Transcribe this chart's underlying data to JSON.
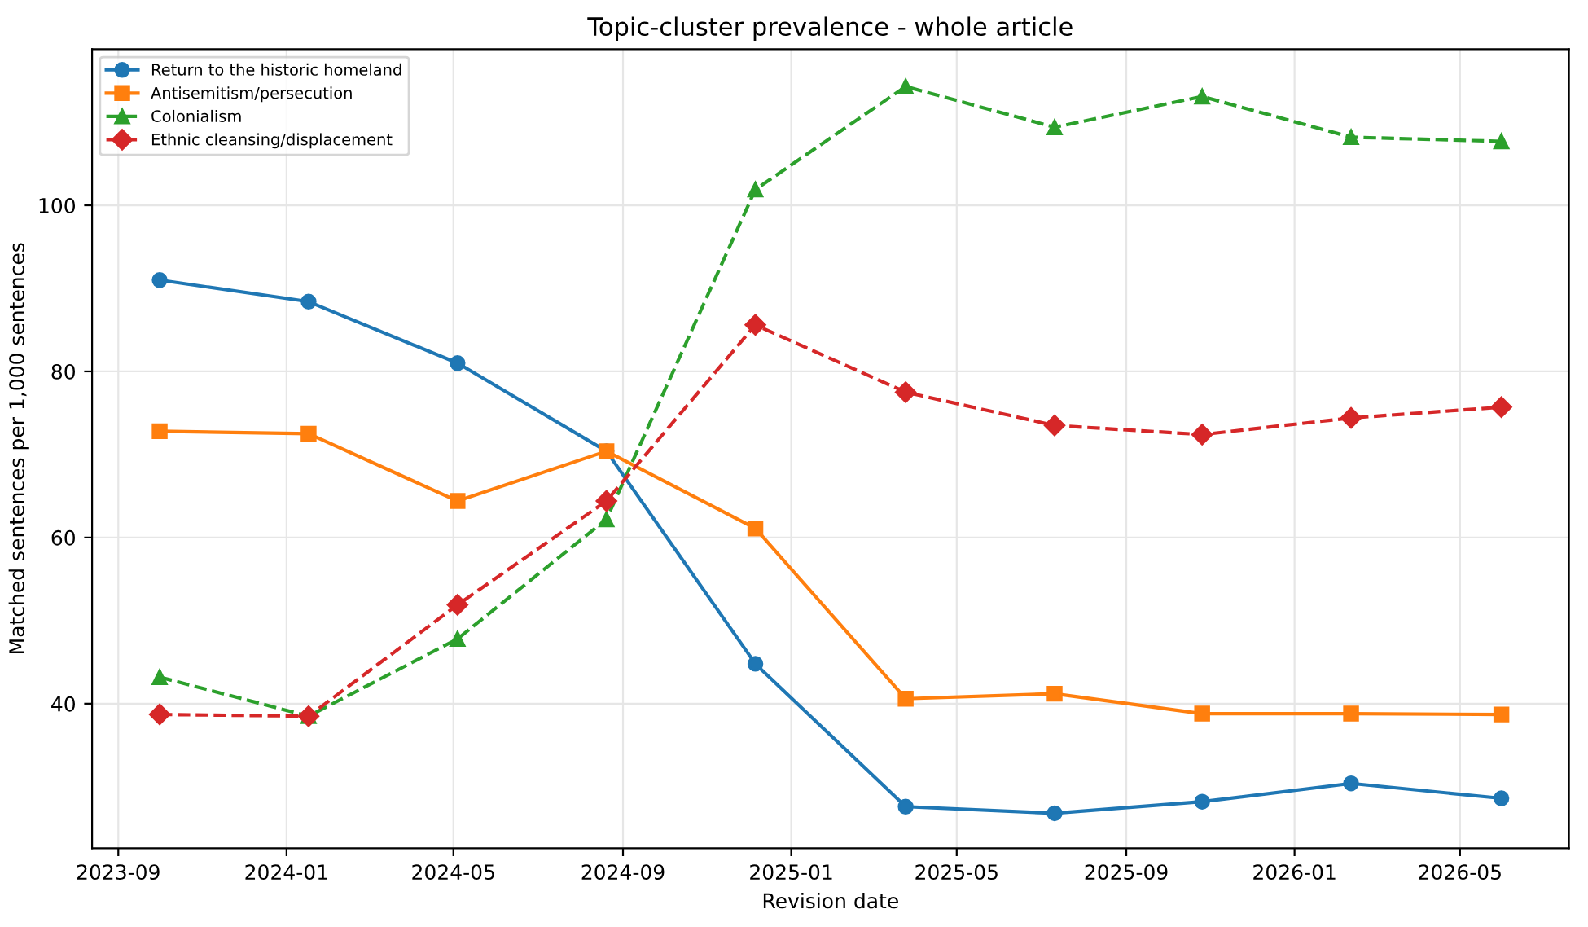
{
  "chart_data": {
    "type": "line",
    "title": "Topic-cluster prevalence - whole article",
    "xlabel": "Revision date",
    "ylabel": "Matched sentences per 1,000 sentences",
    "x": [
      "2023-10-01",
      "2024-01-17",
      "2024-05-04",
      "2024-08-20",
      "2024-12-06",
      "2025-03-25",
      "2025-07-11",
      "2025-10-26",
      "2026-02-11",
      "2026-05-31"
    ],
    "series": [
      {
        "name": "Return to the historic homeland",
        "color": "#1f77b4",
        "marker": "circle",
        "line_style": "solid",
        "values": [
          91.0,
          88.4,
          81.0,
          70.4,
          44.8,
          27.6,
          26.8,
          28.2,
          30.4,
          28.6
        ]
      },
      {
        "name": "Antisemitism/persecution",
        "color": "#ff7f0e",
        "marker": "square",
        "line_style": "solid",
        "values": [
          72.8,
          72.5,
          64.4,
          70.4,
          61.1,
          40.6,
          41.2,
          38.8,
          38.8,
          38.7
        ]
      },
      {
        "name": "Colonialism",
        "color": "#2ca02c",
        "marker": "triangle",
        "line_style": "dashed",
        "values": [
          43.2,
          38.5,
          47.8,
          62.2,
          101.9,
          114.3,
          109.4,
          113.1,
          108.2,
          107.7
        ]
      },
      {
        "name": "Ethnic cleansing/displacement",
        "color": "#d62728",
        "marker": "diamond",
        "line_style": "dashed",
        "values": [
          38.7,
          38.5,
          51.9,
          64.4,
          85.6,
          77.5,
          73.5,
          72.4,
          74.4,
          75.7
        ]
      }
    ],
    "xlim": [
      "2023-08-13",
      "2026-07-19"
    ],
    "xticks": [
      {
        "value": "2023-09-01",
        "label": "2023-09"
      },
      {
        "value": "2024-01-01",
        "label": "2024-01"
      },
      {
        "value": "2024-05-01",
        "label": "2024-05"
      },
      {
        "value": "2024-09-01",
        "label": "2024-09"
      },
      {
        "value": "2025-01-01",
        "label": "2025-01"
      },
      {
        "value": "2025-05-01",
        "label": "2025-05"
      },
      {
        "value": "2025-09-01",
        "label": "2025-09"
      },
      {
        "value": "2026-01-01",
        "label": "2026-01"
      },
      {
        "value": "2026-05-01",
        "label": "2026-05"
      }
    ],
    "ylim": [
      22.6,
      118.8
    ],
    "yticks": [
      40,
      60,
      80,
      100
    ],
    "grid": true,
    "legend": "top left"
  }
}
